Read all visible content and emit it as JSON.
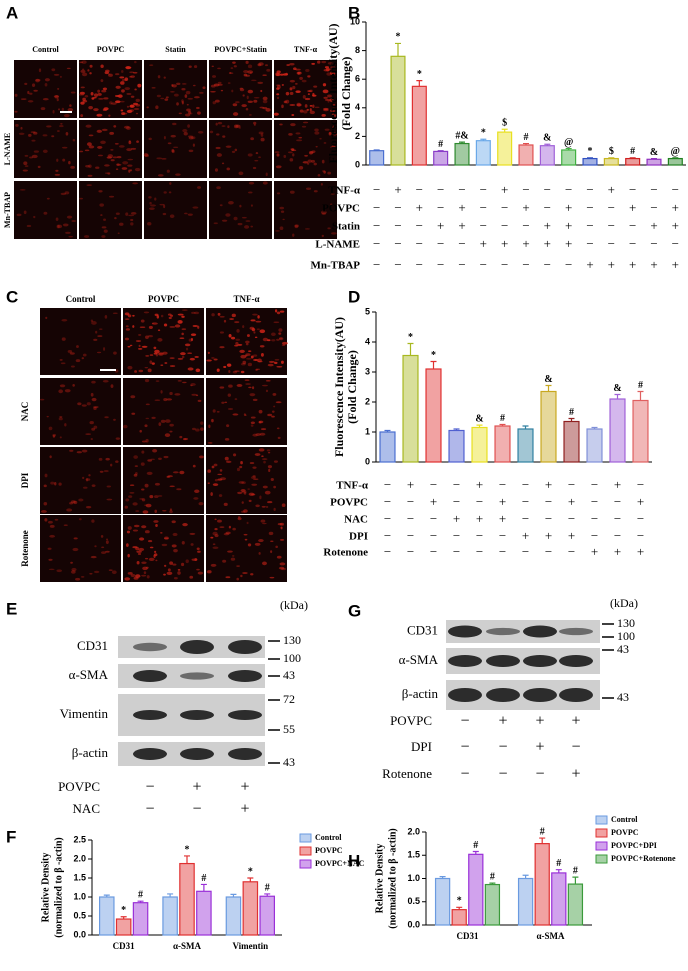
{
  "chart_data": [
    {
      "type": "bar",
      "panel": "B",
      "ylabel": [
        "Fluorescence Intensity(AU)",
        "(Fold Change)"
      ],
      "values": [
        1.0,
        7.6,
        5.5,
        0.95,
        1.5,
        1.7,
        2.3,
        1.4,
        1.35,
        1.05,
        0.45,
        0.45,
        0.45,
        0.4,
        0.45
      ],
      "errors": [
        0.05,
        0.9,
        0.4,
        0.05,
        0.1,
        0.1,
        0.2,
        0.1,
        0.1,
        0.1,
        0.05,
        0.05,
        0.05,
        0.05,
        0.05
      ],
      "annotations": [
        null,
        "*",
        "*",
        "#",
        "#&",
        "*",
        "$",
        "#",
        "&",
        "@",
        "*",
        "$",
        "#",
        "&",
        "@"
      ],
      "colors": [
        "#4a6fd0",
        "#a8b820",
        "#e03030",
        "#8a3cc8",
        "#2e8a2e",
        "#6aa8e8",
        "#e8e020",
        "#e05050",
        "#a060d8",
        "#40b040",
        "#3050c0",
        "#c8b820",
        "#d02020",
        "#9030c0",
        "#208020"
      ],
      "ylim": [
        0,
        10
      ],
      "yticks": [
        0,
        2,
        4,
        6,
        8,
        10
      ],
      "treatments": [
        {
          "name": "TNF-α",
          "signs": [
            "−",
            "+",
            "−",
            "−",
            "−",
            "−",
            "+",
            "−",
            "−",
            "−",
            "−",
            "+",
            "−",
            "−",
            "−"
          ]
        },
        {
          "name": "POVPC",
          "signs": [
            "−",
            "−",
            "+",
            "−",
            "+",
            "−",
            "−",
            "+",
            "−",
            "+",
            "−",
            "−",
            "+",
            "−",
            "+"
          ]
        },
        {
          "name": "Statin",
          "signs": [
            "−",
            "−",
            "−",
            "+",
            "+",
            "−",
            "−",
            "−",
            "+",
            "+",
            "−",
            "−",
            "−",
            "+",
            "+"
          ]
        },
        {
          "name": "L-NAME",
          "signs": [
            "−",
            "−",
            "−",
            "−",
            "−",
            "+",
            "+",
            "+",
            "+",
            "+",
            "−",
            "−",
            "−",
            "−",
            "−"
          ]
        },
        {
          "name": "Mn-TBAP",
          "signs": [
            "−",
            "−",
            "−",
            "−",
            "−",
            "−",
            "−",
            "−",
            "−",
            "−",
            "+",
            "+",
            "+",
            "+",
            "+"
          ]
        }
      ]
    },
    {
      "type": "bar",
      "panel": "D",
      "ylabel": [
        "Fluorescence Intensity(AU)",
        "(Fold Change)"
      ],
      "values": [
        1.0,
        3.55,
        3.1,
        1.05,
        1.15,
        1.2,
        1.1,
        2.35,
        1.35,
        1.1,
        2.1,
        2.05
      ],
      "errors": [
        0.05,
        0.4,
        0.25,
        0.05,
        0.08,
        0.05,
        0.1,
        0.2,
        0.1,
        0.05,
        0.15,
        0.3
      ],
      "annotations": [
        null,
        "*",
        "*",
        null,
        "&",
        "#",
        null,
        "&",
        "#",
        null,
        "&",
        "#"
      ],
      "colors": [
        "#4a6fd0",
        "#a8b820",
        "#e03030",
        "#5060d0",
        "#e8e020",
        "#e05050",
        "#3080a0",
        "#c8a820",
        "#902020",
        "#8090d8",
        "#a060d8",
        "#e06060"
      ],
      "ylim": [
        0,
        5
      ],
      "yticks": [
        0,
        1,
        2,
        3,
        4,
        5
      ],
      "treatments": [
        {
          "name": "TNF-α",
          "signs": [
            "−",
            "+",
            "−",
            "−",
            "+",
            "−",
            "−",
            "+",
            "−",
            "−",
            "+",
            "−"
          ]
        },
        {
          "name": "POVPC",
          "signs": [
            "−",
            "−",
            "+",
            "−",
            "−",
            "+",
            "−",
            "−",
            "+",
            "−",
            "−",
            "+"
          ]
        },
        {
          "name": "NAC",
          "signs": [
            "−",
            "−",
            "−",
            "+",
            "+",
            "+",
            "−",
            "−",
            "−",
            "−",
            "−",
            "−"
          ]
        },
        {
          "name": "DPI",
          "signs": [
            "−",
            "−",
            "−",
            "−",
            "−",
            "−",
            "+",
            "+",
            "+",
            "−",
            "−",
            "−"
          ]
        },
        {
          "name": "Rotenone",
          "signs": [
            "−",
            "−",
            "−",
            "−",
            "−",
            "−",
            "−",
            "−",
            "−",
            "+",
            "+",
            "+"
          ]
        }
      ]
    },
    {
      "type": "bar",
      "panel": "F",
      "ylabel": [
        "Relative Density",
        "(normalized to β -actin)"
      ],
      "categories": [
        "CD31",
        "α-SMA",
        "Vimentin"
      ],
      "series": [
        {
          "name": "Control",
          "color": "#6a9ae0",
          "values": [
            1.0,
            1.0,
            1.0
          ],
          "errors": [
            0.05,
            0.08,
            0.07
          ],
          "annotations": [
            null,
            null,
            null
          ]
        },
        {
          "name": "POVPC",
          "color": "#e03030",
          "values": [
            0.42,
            1.88,
            1.4
          ],
          "errors": [
            0.06,
            0.2,
            0.1
          ],
          "annotations": [
            "*",
            "*",
            "*"
          ]
        },
        {
          "name": "POVPC+NAC",
          "color": "#9a30d8",
          "values": [
            0.85,
            1.15,
            1.02
          ],
          "errors": [
            0.04,
            0.18,
            0.06
          ],
          "annotations": [
            "#",
            "#",
            "#"
          ]
        }
      ],
      "ylim": [
        0,
        2.5
      ],
      "yticks": [
        {
          "value": 0,
          "label": "0.0"
        },
        {
          "value": 0.5,
          "label": "0.5"
        },
        {
          "value": 1,
          "label": "1.0"
        },
        {
          "value": 1.5,
          "label": "1.5"
        },
        {
          "value": 2,
          "label": "2.0"
        },
        {
          "value": 2.5,
          "label": "2.5"
        }
      ],
      "legend": "upper right"
    },
    {
      "type": "bar",
      "panel": "H",
      "ylabel": [
        "Relative Density",
        "(normalized to β -actin)"
      ],
      "categories": [
        "CD31",
        "α-SMA"
      ],
      "series": [
        {
          "name": "Control",
          "color": "#6a9ae0",
          "values": [
            1.0,
            1.0
          ],
          "errors": [
            0.04,
            0.07
          ],
          "annotations": [
            null,
            null
          ]
        },
        {
          "name": "POVPC",
          "color": "#e03030",
          "values": [
            0.33,
            1.75
          ],
          "errors": [
            0.05,
            0.12
          ],
          "annotations": [
            "*",
            "#"
          ]
        },
        {
          "name": "POVPC+DPI",
          "color": "#9a30d8",
          "values": [
            1.52,
            1.12
          ],
          "errors": [
            0.06,
            0.07
          ],
          "annotations": [
            "#",
            "#"
          ]
        },
        {
          "name": "POVPC+Rotenone",
          "color": "#3a9a3a",
          "values": [
            0.87,
            0.88
          ],
          "errors": [
            0.03,
            0.15
          ],
          "annotations": [
            "#",
            "#"
          ]
        }
      ],
      "ylim": [
        0,
        2
      ],
      "yticks": [
        {
          "value": 0,
          "label": "0.0"
        },
        {
          "value": 0.5,
          "label": "0.5"
        },
        {
          "value": 1,
          "label": "1.0"
        },
        {
          "value": 1.5,
          "label": "1.5"
        },
        {
          "value": 2,
          "label": "2.0"
        }
      ],
      "legend": "upper right"
    }
  ],
  "micrographs": [
    {
      "panel": "A",
      "columns": [
        "Control",
        "POVPC",
        "Statin",
        "POVPC+Statin",
        "TNF-α"
      ],
      "row_labels": [
        "L-NAME",
        "Mn-TBAP"
      ]
    },
    {
      "panel": "C",
      "columns": [
        "Control",
        "POVPC",
        "TNF-α"
      ],
      "row_labels": [
        "NAC",
        "DPI",
        "Rotenone"
      ]
    }
  ],
  "blots": [
    {
      "panel": "E",
      "unit": "(kDa)",
      "proteins": [
        "CD31",
        "α-SMA",
        "Vimentin",
        "β-actin"
      ],
      "markers": [
        "130",
        "100",
        "43",
        "72",
        "55",
        "43"
      ],
      "treatments": [
        {
          "name": "POVPC",
          "signs": [
            "−",
            "+",
            "+"
          ]
        },
        {
          "name": "NAC",
          "signs": [
            "−",
            "−",
            "+"
          ]
        }
      ]
    },
    {
      "panel": "G",
      "unit": "(kDa)",
      "proteins": [
        "CD31",
        "α-SMA",
        "β-actin"
      ],
      "markers": [
        "130",
        "100",
        "43",
        "43"
      ],
      "treatments": [
        {
          "name": "POVPC",
          "signs": [
            "−",
            "+",
            "+",
            "+"
          ]
        },
        {
          "name": "DPI",
          "signs": [
            "−",
            "−",
            "+",
            "−"
          ]
        },
        {
          "name": "Rotenone",
          "signs": [
            "−",
            "−",
            "−",
            "+"
          ]
        }
      ]
    }
  ]
}
